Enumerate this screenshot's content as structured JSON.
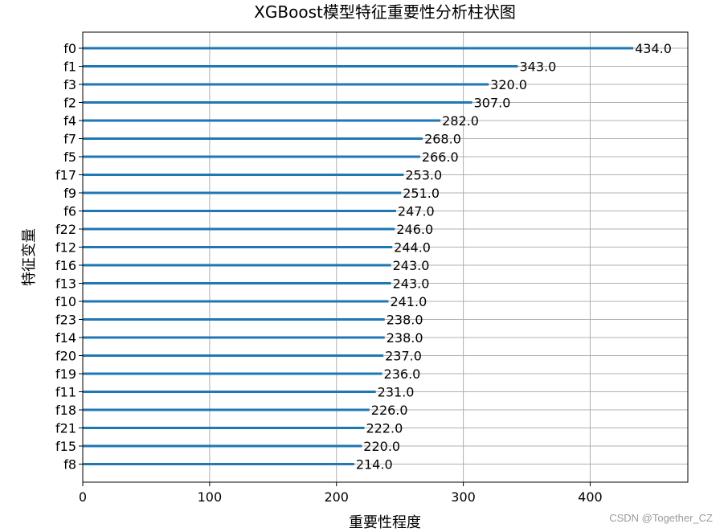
{
  "chart_data": {
    "type": "bar",
    "orientation": "horizontal",
    "title": "XGBoost模型特征重要性分析柱状图",
    "xlabel": "重要性程度",
    "ylabel": "特征变量",
    "categories": [
      "f0",
      "f1",
      "f3",
      "f2",
      "f4",
      "f7",
      "f5",
      "f17",
      "f9",
      "f6",
      "f22",
      "f12",
      "f16",
      "f13",
      "f10",
      "f23",
      "f14",
      "f20",
      "f19",
      "f11",
      "f18",
      "f21",
      "f15",
      "f8"
    ],
    "values": [
      434,
      343,
      320,
      307,
      282,
      268,
      266,
      253,
      251,
      247,
      246,
      244,
      243,
      243,
      241,
      238,
      238,
      237,
      236,
      231,
      226,
      222,
      220,
      214
    ],
    "value_labels": [
      "434.0",
      "343.0",
      "320.0",
      "307.0",
      "282.0",
      "268.0",
      "266.0",
      "253.0",
      "251.0",
      "247.0",
      "246.0",
      "244.0",
      "243.0",
      "243.0",
      "241.0",
      "238.0",
      "238.0",
      "237.0",
      "236.0",
      "231.0",
      "226.0",
      "222.0",
      "220.0",
      "214.0"
    ],
    "xlim": [
      0,
      477
    ],
    "xticks": [
      0,
      100,
      200,
      300,
      400
    ],
    "grid": true,
    "bar_color": "#1f77b4"
  },
  "watermark": "CSDN @Together_CZ"
}
